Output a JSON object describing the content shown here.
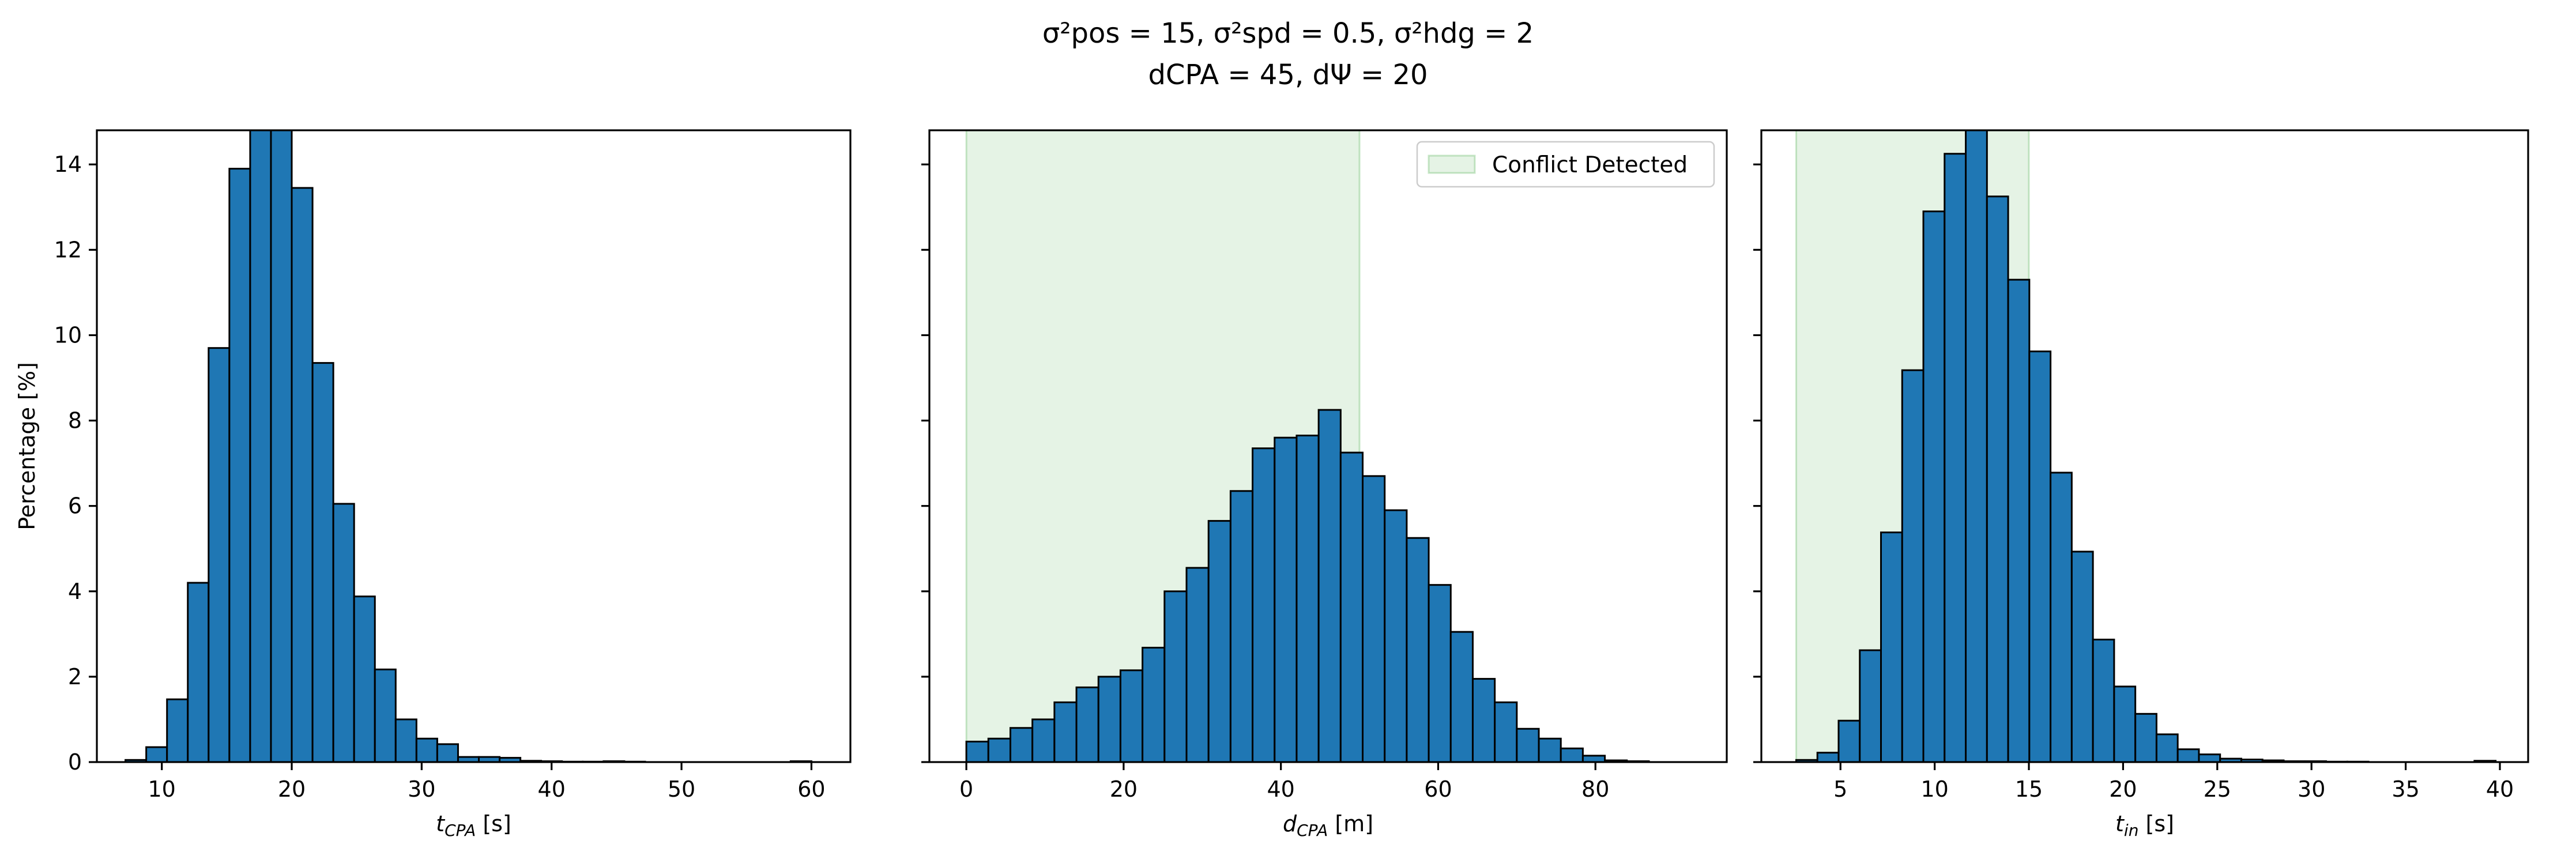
{
  "figure": {
    "title_line1": "σ²pos = 15, σ²spd = 0.5, σ²hdg = 2",
    "title_line2": "dCPA = 45, dΨ = 20"
  },
  "colors": {
    "bar": "#1f77b4",
    "band": "#2ca02c"
  },
  "chart_data": [
    {
      "type": "bar",
      "subtype": "histogram",
      "xlabel": "tCPA [s]",
      "ylabel": "Percentage [%]",
      "xlim": [
        5,
        63
      ],
      "ylim": [
        0,
        14.8
      ],
      "xticks": [
        10,
        20,
        30,
        40,
        50,
        60
      ],
      "yticks": [
        0,
        2,
        4,
        6,
        8,
        10,
        12,
        14
      ],
      "bin_edges": [
        7.2,
        8.8,
        10.4,
        12.0,
        13.6,
        15.2,
        16.8,
        18.4,
        20.0,
        21.6,
        23.2,
        24.8,
        26.4,
        28.0,
        29.6,
        31.2,
        32.8,
        34.4,
        36.0,
        37.6,
        39.2,
        40.8,
        42.4,
        44.0,
        45.6,
        47.2,
        48.8,
        50.4,
        52.0,
        53.6,
        55.2,
        56.8,
        58.4,
        60.0
      ],
      "values": [
        0.05,
        0.35,
        1.47,
        4.2,
        9.7,
        13.9,
        14.8,
        14.8,
        13.45,
        9.35,
        6.05,
        3.88,
        2.17,
        1.0,
        0.55,
        0.42,
        0.12,
        0.12,
        0.1,
        0.03,
        0.02,
        0.01,
        0.01,
        0.02,
        0.01,
        0.0,
        0.0,
        0.0,
        0.0,
        0.0,
        0.0,
        0.0,
        0.02
      ],
      "band": null,
      "legend": null,
      "show_ylabels": true
    },
    {
      "type": "bar",
      "subtype": "histogram",
      "xlabel": "dCPA [m]",
      "ylabel": "",
      "xlim": [
        -4.7,
        96.7
      ],
      "ylim": [
        0,
        14.8
      ],
      "xticks": [
        0,
        20,
        40,
        60,
        80
      ],
      "yticks": [
        0,
        2,
        4,
        6,
        8,
        10,
        12,
        14
      ],
      "bin_edges": [
        0.0,
        2.8,
        5.6,
        8.4,
        11.2,
        14.0,
        16.8,
        19.6,
        22.4,
        25.2,
        28.0,
        30.8,
        33.6,
        36.4,
        39.2,
        42.0,
        44.8,
        47.6,
        50.4,
        53.2,
        56.0,
        58.8,
        61.6,
        64.4,
        67.2,
        70.0,
        72.8,
        75.6,
        78.4,
        81.2,
        84.0,
        86.8,
        89.6,
        92.4
      ],
      "values": [
        0.48,
        0.55,
        0.8,
        1.0,
        1.4,
        1.75,
        2.0,
        2.15,
        2.68,
        4.0,
        4.55,
        5.65,
        6.35,
        7.35,
        7.6,
        7.65,
        8.25,
        7.25,
        6.7,
        5.9,
        5.25,
        4.15,
        3.05,
        1.95,
        1.4,
        0.78,
        0.55,
        0.32,
        0.15,
        0.04,
        0.02,
        0.0,
        0.0
      ],
      "band": {
        "range": [
          0,
          50
        ],
        "label": "Conflict Detected"
      },
      "legend": {
        "label": "Conflict Detected",
        "position": "top-right"
      },
      "show_ylabels": false
    },
    {
      "type": "bar",
      "subtype": "histogram",
      "xlabel": "tin [s]",
      "ylabel": "",
      "xlim": [
        0.8,
        41.5
      ],
      "ylim": [
        0,
        14.8
      ],
      "xticks": [
        5,
        10,
        15,
        20,
        25,
        30,
        35,
        40
      ],
      "yticks": [
        0,
        2,
        4,
        6,
        8,
        10,
        12,
        14
      ],
      "bin_edges": [
        2.65,
        3.775,
        4.9,
        6.025,
        7.15,
        8.275,
        9.4,
        10.525,
        11.65,
        12.775,
        13.9,
        15.025,
        16.15,
        17.275,
        18.4,
        19.525,
        20.65,
        21.775,
        22.9,
        24.025,
        25.15,
        26.275,
        27.4,
        28.525,
        29.65,
        30.775,
        31.9,
        33.025,
        34.15,
        35.275,
        36.4,
        37.525,
        38.65,
        39.775,
        40.9
      ],
      "values": [
        0.05,
        0.22,
        0.97,
        2.62,
        5.38,
        9.18,
        12.9,
        14.25,
        14.8,
        13.25,
        11.3,
        9.62,
        6.78,
        4.93,
        2.87,
        1.77,
        1.13,
        0.65,
        0.3,
        0.18,
        0.08,
        0.06,
        0.04,
        0.02,
        0.02,
        0.01,
        0.01,
        0.0,
        0.0,
        0.0,
        0.0,
        0.0,
        0.03,
        0.0
      ],
      "band": {
        "range": [
          2.65,
          15.0
        ],
        "label": ""
      },
      "legend": null,
      "show_ylabels": false
    }
  ]
}
